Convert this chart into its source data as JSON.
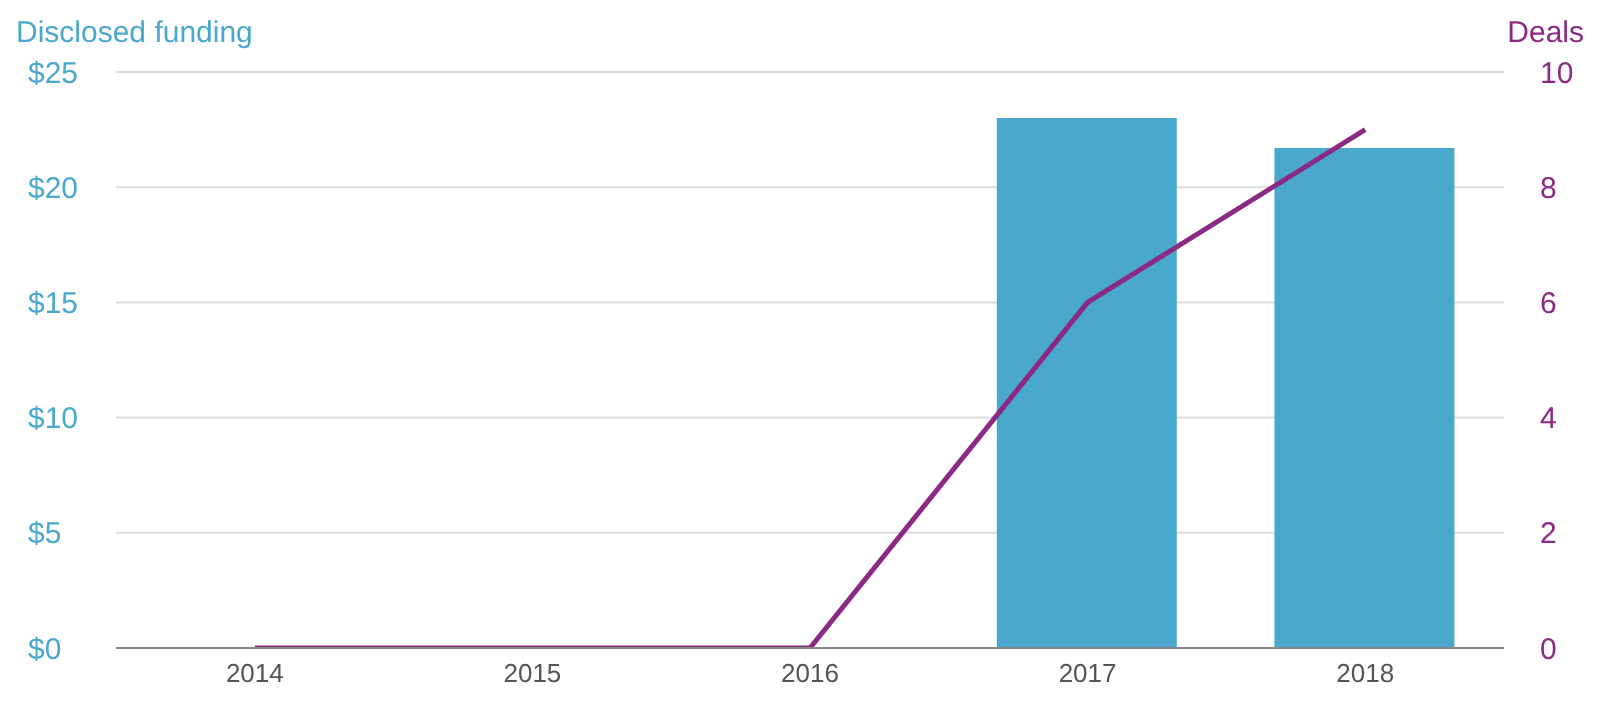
{
  "chart_data": {
    "type": "bar",
    "ylabel": "Disclosed funding",
    "y2label": "Deals",
    "categories": [
      "2014",
      "2015",
      "2016",
      "2017",
      "2018"
    ],
    "series": [
      {
        "color": "#4aa8cc",
        "values": [
          0,
          0,
          0,
          23,
          21.7
        ]
      },
      {
        "type": "line",
        "axis": "y2",
        "color": "#8a2a84",
        "values": [
          0,
          0,
          0,
          6,
          9
        ]
      }
    ],
    "ylim": [
      0,
      25
    ],
    "yticks": [
      {
        "value": 0,
        "label": "$0"
      },
      {
        "value": 5,
        "label": "$5"
      },
      {
        "value": 10,
        "label": "$10"
      },
      {
        "value": 15,
        "label": "$15"
      },
      {
        "value": 20,
        "label": "$20"
      },
      {
        "value": 25,
        "label": "$25"
      }
    ],
    "y2lim": [
      0,
      10
    ],
    "y2ticks": [
      0,
      2,
      4,
      6,
      8,
      10
    ],
    "grid": "y",
    "legend": false,
    "marker": "none"
  }
}
